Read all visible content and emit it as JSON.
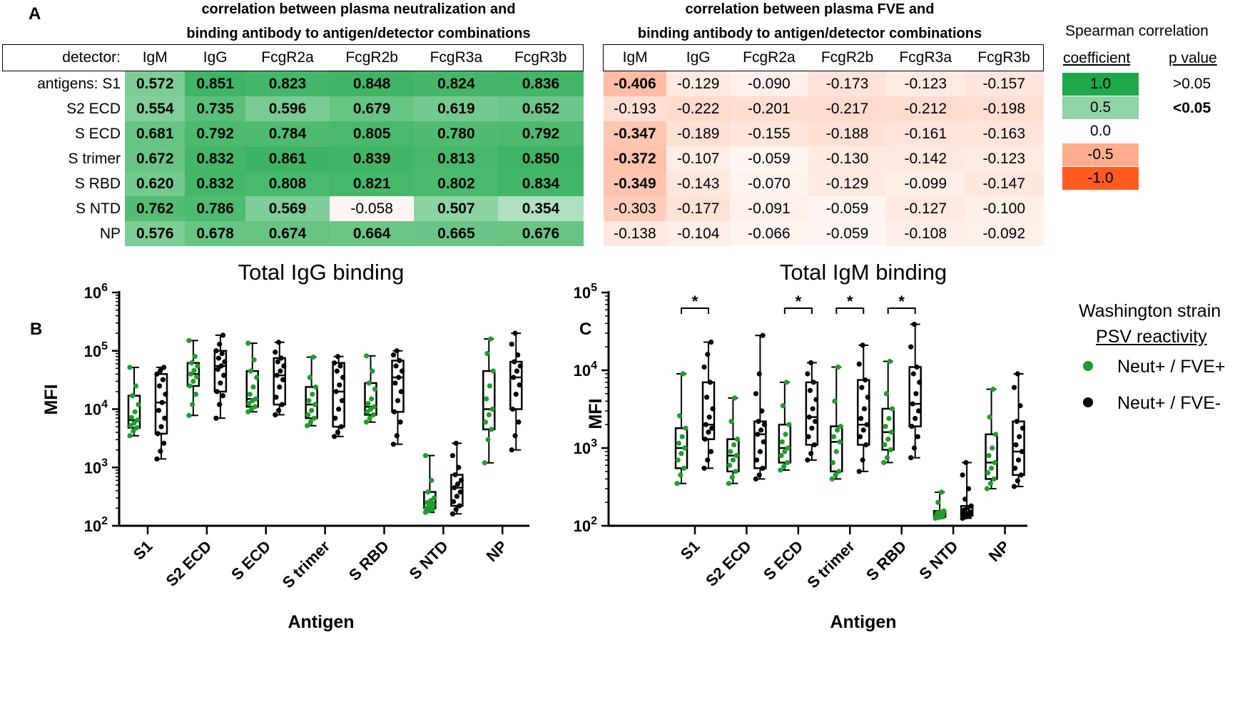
{
  "panel_a": {
    "letter": "A",
    "title_left_line1": "correlation between plasma neutralization and",
    "title_left_line2": "binding antibody to antigen/detector combinations",
    "title_right_line1": "correlation between plasma FVE and",
    "title_right_line2": "binding antibody to antigen/detector combinations",
    "detector_label": "detector:",
    "detectors": [
      "IgM",
      "IgG",
      "FcgR2a",
      "FcgR2b",
      "FcgR3a",
      "FcgR3b"
    ],
    "antigens_label_prefix": "antigens: ",
    "row_labels": [
      "S1",
      "S2 ECD",
      "S ECD",
      "S trimer",
      "S RBD",
      "S NTD",
      "NP"
    ],
    "neut_values": [
      [
        "0.572",
        "0.851",
        "0.823",
        "0.848",
        "0.824",
        "0.836"
      ],
      [
        "0.554",
        "0.735",
        "0.596",
        "0.679",
        "0.619",
        "0.652"
      ],
      [
        "0.681",
        "0.792",
        "0.784",
        "0.805",
        "0.780",
        "0.792"
      ],
      [
        "0.672",
        "0.832",
        "0.861",
        "0.839",
        "0.813",
        "0.850"
      ],
      [
        "0.620",
        "0.832",
        "0.808",
        "0.821",
        "0.802",
        "0.834"
      ],
      [
        "0.762",
        "0.786",
        "0.569",
        "-0.058",
        "0.507",
        "0.354"
      ],
      [
        "0.576",
        "0.678",
        "0.674",
        "0.664",
        "0.665",
        "0.676"
      ]
    ],
    "neut_significant": [
      [
        true,
        true,
        true,
        true,
        true,
        true
      ],
      [
        true,
        true,
        true,
        true,
        true,
        true
      ],
      [
        true,
        true,
        true,
        true,
        true,
        true
      ],
      [
        true,
        true,
        true,
        true,
        true,
        true
      ],
      [
        true,
        true,
        true,
        true,
        true,
        true
      ],
      [
        true,
        true,
        true,
        false,
        true,
        true
      ],
      [
        true,
        true,
        true,
        true,
        true,
        true
      ]
    ],
    "fve_values": [
      [
        "-0.406",
        "-0.129",
        "-0.090",
        "-0.173",
        "-0.123",
        "-0.157"
      ],
      [
        "-0.193",
        "-0.222",
        "-0.201",
        "-0.217",
        "-0.212",
        "-0.198"
      ],
      [
        "-0.347",
        "-0.189",
        "-0.155",
        "-0.188",
        "-0.161",
        "-0.163"
      ],
      [
        "-0.372",
        "-0.107",
        "-0.059",
        "-0.130",
        "-0.142",
        "-0.123"
      ],
      [
        "-0.349",
        "-0.143",
        "-0.070",
        "-0.129",
        "-0.099",
        "-0.147"
      ],
      [
        "-0.303",
        "-0.177",
        "-0.091",
        "-0.059",
        "-0.127",
        "-0.100"
      ],
      [
        "-0.138",
        "-0.104",
        "-0.066",
        "-0.059",
        "-0.108",
        "-0.092"
      ]
    ],
    "fve_significant": [
      [
        true,
        false,
        false,
        false,
        false,
        false
      ],
      [
        false,
        false,
        false,
        false,
        false,
        false
      ],
      [
        true,
        false,
        false,
        false,
        false,
        false
      ],
      [
        true,
        false,
        false,
        false,
        false,
        false
      ],
      [
        true,
        false,
        false,
        false,
        false,
        false
      ],
      [
        false,
        false,
        false,
        false,
        false,
        false
      ],
      [
        false,
        false,
        false,
        false,
        false,
        false
      ]
    ],
    "legend_title": "Spearman correlation",
    "legend_coef_header": "coefficient",
    "legend_p_header": "p value",
    "legend_values": [
      "1.0",
      "0.5",
      "0.0",
      "-0.5",
      "-1.0"
    ],
    "legend_p_values": [
      ">0.05",
      "<0.05"
    ]
  },
  "colors": {
    "green_strong": "#1ea84a",
    "orange_strong": "#ff5a1f",
    "green_points": "#1e9e2a",
    "black_points": "#000000"
  },
  "chart_data": [
    {
      "panel": "B",
      "type": "box",
      "title": "Total IgG binding",
      "xlabel": "Antigen",
      "ylabel": "MFI",
      "yscale": "log10",
      "ylim": [
        100,
        1000000
      ],
      "y_tick_exponents": [
        "2",
        "3",
        "4",
        "5",
        "6"
      ],
      "categories": [
        "S1",
        "S2 ECD",
        "S ECD",
        "S trimer",
        "S RBD",
        "S NTD",
        "NP"
      ],
      "series": [
        {
          "name": "Neut+ / FVE+",
          "boxes": [
            {
              "min": 3500,
              "q1": 4800,
              "median": 6500,
              "q3": 17000,
              "max": 52000
            },
            {
              "min": 7800,
              "q1": 25000,
              "median": 40000,
              "q3": 62000,
              "max": 150000
            },
            {
              "min": 9000,
              "q1": 11000,
              "median": 15000,
              "q3": 45000,
              "max": 135000
            },
            {
              "min": 5200,
              "q1": 7000,
              "median": 12000,
              "q3": 24000,
              "max": 78000
            },
            {
              "min": 6000,
              "q1": 8000,
              "median": 11000,
              "q3": 28000,
              "max": 82000
            },
            {
              "min": 170,
              "q1": 200,
              "median": 250,
              "q3": 380,
              "max": 1600
            },
            {
              "min": 1200,
              "q1": 4500,
              "median": 10000,
              "q3": 45000,
              "max": 160000
            }
          ],
          "points": [
            [
              3500,
              4200,
              4800,
              5200,
              5800,
              6500,
              7200,
              9000,
              12000,
              17000,
              25000,
              52000
            ],
            [
              7800,
              12000,
              18000,
              25000,
              30000,
              36000,
              40000,
              46000,
              55000,
              62000,
              80000,
              150000
            ],
            [
              9000,
              10000,
              11000,
              12500,
              14000,
              15000,
              18000,
              24000,
              35000,
              45000,
              70000,
              135000
            ],
            [
              5200,
              6000,
              7000,
              8000,
              9500,
              12000,
              14000,
              18000,
              24000,
              35000,
              78000
            ],
            [
              6000,
              7000,
              8000,
              9000,
              10000,
              11000,
              12500,
              15000,
              22000,
              28000,
              45000,
              82000
            ],
            [
              170,
              180,
              190,
              200,
              215,
              230,
              250,
              270,
              300,
              380,
              600,
              1600
            ],
            [
              1200,
              3000,
              4500,
              6000,
              8000,
              10000,
              15000,
              25000,
              45000,
              90000,
              160000
            ]
          ]
        },
        {
          "name": "Neut+ / FVE-",
          "boxes": [
            {
              "min": 1400,
              "q1": 3800,
              "median": 13000,
              "q3": 40000,
              "max": 52000
            },
            {
              "min": 7000,
              "q1": 20000,
              "median": 55000,
              "q3": 100000,
              "max": 185000
            },
            {
              "min": 8000,
              "q1": 12000,
              "median": 38000,
              "q3": 75000,
              "max": 140000
            },
            {
              "min": 3400,
              "q1": 5000,
              "median": 20000,
              "q3": 62000,
              "max": 80000
            },
            {
              "min": 2500,
              "q1": 9000,
              "median": 35000,
              "q3": 68000,
              "max": 100000
            },
            {
              "min": 160,
              "q1": 220,
              "median": 450,
              "q3": 750,
              "max": 2600
            },
            {
              "min": 2000,
              "q1": 10000,
              "median": 35000,
              "q3": 65000,
              "max": 200000
            }
          ],
          "points": [
            [
              1400,
              1900,
              2600,
              3800,
              5000,
              7000,
              9500,
              13000,
              18000,
              25000,
              32000,
              40000,
              46000,
              52000
            ],
            [
              7000,
              12000,
              17000,
              20000,
              28000,
              38000,
              48000,
              55000,
              65000,
              75000,
              90000,
              100000,
              130000,
              185000
            ],
            [
              8000,
              9500,
              12000,
              16000,
              24000,
              32000,
              38000,
              45000,
              55000,
              65000,
              75000,
              95000,
              140000
            ],
            [
              3400,
              4000,
              5000,
              7000,
              10000,
              14000,
              20000,
              26000,
              35000,
              45000,
              55000,
              62000,
              80000
            ],
            [
              2500,
              3500,
              6000,
              9000,
              14000,
              20000,
              28000,
              35000,
              45000,
              55000,
              68000,
              85000,
              100000
            ],
            [
              160,
              190,
              220,
              260,
              320,
              380,
              450,
              520,
              600,
              750,
              1000,
              1600,
              2600
            ],
            [
              2000,
              3500,
              6000,
              10000,
              18000,
              26000,
              35000,
              45000,
              55000,
              65000,
              85000,
              130000,
              200000
            ]
          ]
        }
      ]
    },
    {
      "panel": "C",
      "type": "box",
      "title": "Total IgM binding",
      "xlabel": "Antigen",
      "ylabel": "MFI",
      "yscale": "log10",
      "ylim": [
        100,
        100000
      ],
      "y_tick_exponents": [
        "2",
        "3",
        "4",
        "5"
      ],
      "categories": [
        "S1",
        "S2 ECD",
        "S ECD",
        "S trimer",
        "S RBD",
        "S NTD",
        "NP"
      ],
      "significance": [
        "*",
        "",
        "*",
        "*",
        "*",
        "",
        ""
      ],
      "series": [
        {
          "name": "Neut+ / FVE+",
          "boxes": [
            {
              "min": 350,
              "q1": 550,
              "median": 1000,
              "q3": 1800,
              "max": 9000
            },
            {
              "min": 350,
              "q1": 500,
              "median": 800,
              "q3": 1300,
              "max": 4400
            },
            {
              "min": 520,
              "q1": 650,
              "median": 1000,
              "q3": 2000,
              "max": 7000
            },
            {
              "min": 400,
              "q1": 500,
              "median": 1200,
              "q3": 1900,
              "max": 11000
            },
            {
              "min": 650,
              "q1": 950,
              "median": 1600,
              "q3": 3200,
              "max": 13000
            },
            {
              "min": 125,
              "q1": 130,
              "median": 140,
              "q3": 155,
              "max": 270
            },
            {
              "min": 300,
              "q1": 400,
              "median": 650,
              "q3": 1500,
              "max": 5700
            }
          ],
          "points": [
            [
              350,
              450,
              550,
              700,
              850,
              1000,
              1150,
              1400,
              1800,
              2600,
              9000
            ],
            [
              350,
              420,
              500,
              600,
              700,
              800,
              900,
              1100,
              1300,
              2200,
              4400
            ],
            [
              520,
              580,
              650,
              800,
              900,
              1000,
              1200,
              1500,
              2000,
              3500,
              7000
            ],
            [
              400,
              450,
              500,
              650,
              900,
              1200,
              1400,
              1700,
              1900,
              4000,
              11000
            ],
            [
              650,
              750,
              950,
              1100,
              1300,
              1600,
              1900,
              2400,
              3200,
              5000,
              13000
            ],
            [
              125,
              128,
              130,
              135,
              138,
              140,
              145,
              150,
              155,
              200,
              270
            ],
            [
              300,
              350,
              400,
              480,
              550,
              650,
              800,
              1000,
              1500,
              2500,
              5700
            ]
          ]
        },
        {
          "name": "Neut+ / FVE-",
          "boxes": [
            {
              "min": 550,
              "q1": 1300,
              "median": 2000,
              "q3": 7000,
              "max": 23000
            },
            {
              "min": 400,
              "q1": 550,
              "median": 1500,
              "q3": 2200,
              "max": 28000
            },
            {
              "min": 700,
              "q1": 1100,
              "median": 2500,
              "q3": 7000,
              "max": 12500
            },
            {
              "min": 500,
              "q1": 1100,
              "median": 2000,
              "q3": 7500,
              "max": 21000
            },
            {
              "min": 750,
              "q1": 1900,
              "median": 3700,
              "q3": 11000,
              "max": 39000
            },
            {
              "min": 125,
              "q1": 135,
              "median": 150,
              "q3": 180,
              "max": 650
            },
            {
              "min": 320,
              "q1": 450,
              "median": 900,
              "q3": 2200,
              "max": 9000
            }
          ],
          "points": [
            [
              550,
              700,
              900,
              1300,
              1600,
              1800,
              2000,
              2500,
              3200,
              4500,
              7000,
              11000,
              16000,
              23000
            ],
            [
              400,
              450,
              550,
              700,
              900,
              1200,
              1500,
              1700,
              2000,
              2200,
              3000,
              5000,
              9000,
              28000
            ],
            [
              700,
              850,
              1100,
              1400,
              1800,
              2200,
              2500,
              3200,
              4200,
              5500,
              7000,
              9000,
              12500
            ],
            [
              500,
              700,
              1100,
              1400,
              1700,
              2000,
              2400,
              3200,
              4500,
              6000,
              7500,
              12000,
              21000
            ],
            [
              750,
              1000,
              1400,
              1900,
              2400,
              3000,
              3700,
              5000,
              7000,
              9000,
              11000,
              20000,
              39000
            ],
            [
              125,
              130,
              135,
              140,
              145,
              150,
              160,
              170,
              180,
              220,
              300,
              450,
              650
            ],
            [
              320,
              380,
              450,
              550,
              700,
              900,
              1100,
              1400,
              1800,
              2200,
              3500,
              6000,
              9000
            ]
          ]
        }
      ]
    }
  ],
  "legend_bc": {
    "title_line1": "Washington strain",
    "title_line2": "PSV reactivity",
    "items": [
      "Neut+ / FVE+",
      "Neut+ / FVE-"
    ]
  },
  "panel_b_letter": "B",
  "panel_c_letter": "C"
}
